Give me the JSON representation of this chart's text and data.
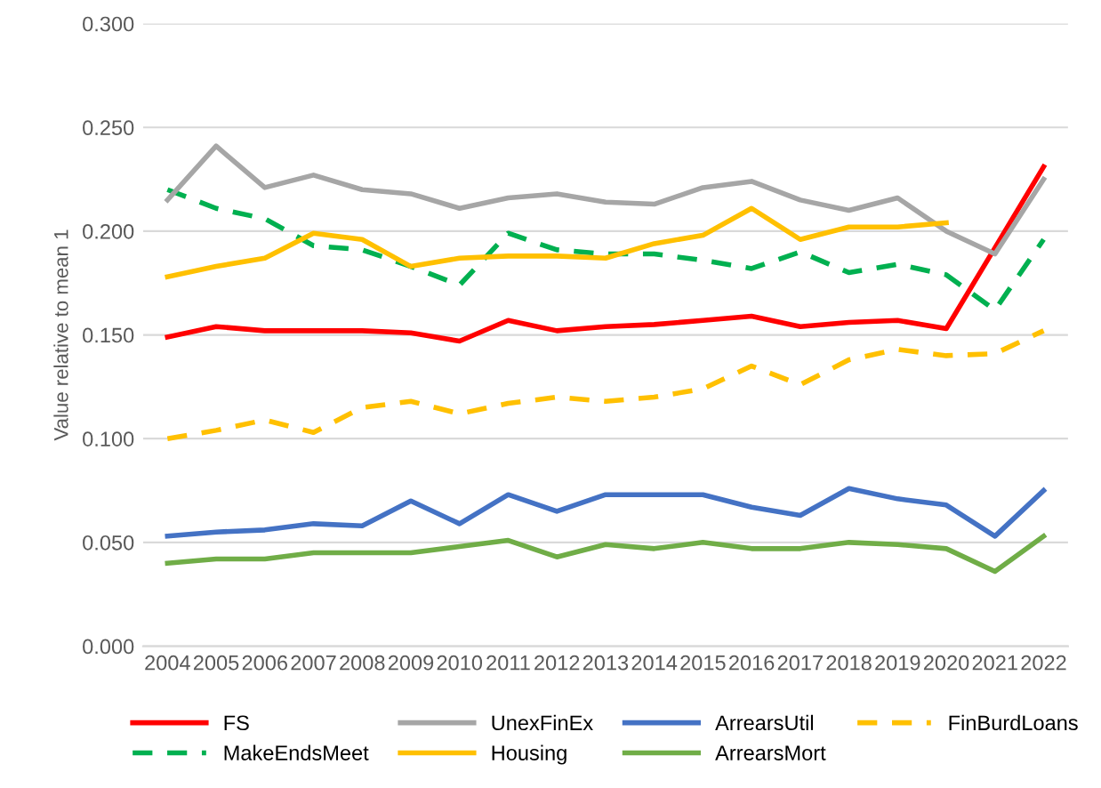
{
  "chart_data": {
    "type": "line",
    "ylabel": "Value relative to mean 1",
    "categories": [
      "2004",
      "2005",
      "2006",
      "2007",
      "2008",
      "2009",
      "2010",
      "2011",
      "2012",
      "2013",
      "2014",
      "2015",
      "2016",
      "2017",
      "2018",
      "2019",
      "2020",
      "2021",
      "2022"
    ],
    "ylim": [
      0,
      0.3
    ],
    "yticks": [
      {
        "value": 0,
        "label": "0.000"
      },
      {
        "value": 0.05,
        "label": "0.050"
      },
      {
        "value": 0.1,
        "label": "0.100"
      },
      {
        "value": 0.15,
        "label": "0.150"
      },
      {
        "value": 0.2,
        "label": "0.200"
      },
      {
        "value": 0.25,
        "label": "0.250"
      },
      {
        "value": 0.3,
        "label": "0.300"
      }
    ],
    "grid": "y",
    "legend": "bottom",
    "series": [
      {
        "name": "FS",
        "color": "#ff0000",
        "line_style": "solid",
        "values": [
          0.149,
          0.154,
          0.152,
          0.152,
          0.152,
          0.151,
          0.147,
          0.157,
          0.152,
          0.154,
          0.155,
          0.157,
          0.159,
          0.154,
          0.156,
          0.157,
          0.153,
          0.192,
          0.231
        ]
      },
      {
        "name": "MakeEndsMeet",
        "color": "#00b050",
        "line_style": "dashed",
        "values": [
          0.22,
          0.211,
          0.206,
          0.193,
          0.191,
          0.183,
          0.174,
          0.199,
          0.191,
          0.189,
          0.189,
          0.186,
          0.182,
          0.19,
          0.18,
          0.184,
          0.179,
          0.162,
          0.196
        ]
      },
      {
        "name": "UnexFinEx",
        "color": "#a6a6a6",
        "line_style": "solid",
        "values": [
          0.215,
          0.241,
          0.221,
          0.227,
          0.22,
          0.218,
          0.211,
          0.216,
          0.218,
          0.214,
          0.213,
          0.221,
          0.224,
          0.215,
          0.21,
          0.216,
          0.2,
          0.189,
          0.225
        ]
      },
      {
        "name": "Housing",
        "color": "#ffc000",
        "line_style": "solid",
        "values": [
          0.178,
          0.183,
          0.187,
          0.199,
          0.196,
          0.183,
          0.187,
          0.188,
          0.188,
          0.187,
          0.194,
          0.198,
          0.211,
          0.196,
          0.202,
          0.202,
          0.204,
          null,
          null
        ]
      },
      {
        "name": "ArrearsUtil",
        "color": "#4472c4",
        "line_style": "solid",
        "values": [
          0.053,
          0.055,
          0.056,
          0.059,
          0.058,
          0.07,
          0.059,
          0.073,
          0.065,
          0.073,
          0.073,
          0.073,
          0.067,
          0.063,
          0.076,
          0.071,
          0.068,
          0.053,
          0.075
        ]
      },
      {
        "name": "ArrearsMort",
        "color": "#70ad47",
        "line_style": "solid",
        "values": [
          0.04,
          0.042,
          0.042,
          0.045,
          0.045,
          0.045,
          0.048,
          0.051,
          0.043,
          0.049,
          0.047,
          0.05,
          0.047,
          0.047,
          0.05,
          0.049,
          0.047,
          0.036,
          0.053
        ]
      },
      {
        "name": "FinBurdLoans",
        "color": "#ffc000",
        "line_style": "dashed",
        "values": [
          0.1,
          0.104,
          0.109,
          0.103,
          0.115,
          0.118,
          0.112,
          0.117,
          0.12,
          0.118,
          0.12,
          0.124,
          0.135,
          0.126,
          0.138,
          0.143,
          0.14,
          0.141,
          0.152
        ]
      }
    ]
  }
}
